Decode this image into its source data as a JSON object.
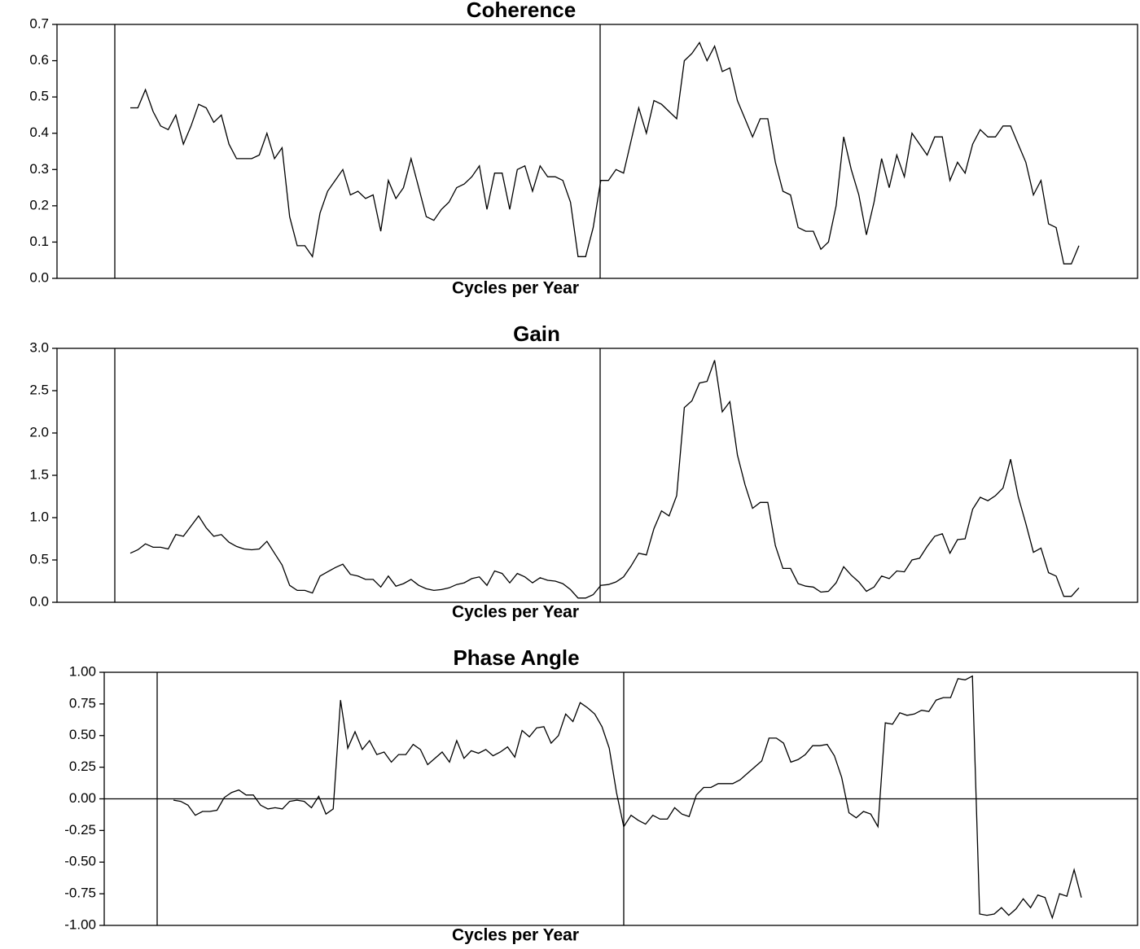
{
  "chart_data": [
    {
      "type": "line",
      "title": "Coherence",
      "x_label": "Cycles per Year",
      "color": "#000000",
      "ylim": [
        0,
        0.7
      ],
      "yticks": [
        {
          "value": 0,
          "label": "0.0"
        },
        0.1,
        0.2,
        0.3,
        0.4,
        0.5,
        0.6,
        0.7
      ],
      "values": [
        0.47,
        0.47,
        0.52,
        0.46,
        0.42,
        0.41,
        0.45,
        0.37,
        0.42,
        0.48,
        0.47,
        0.43,
        0.45,
        0.37,
        0.33,
        0.33,
        0.33,
        0.34,
        0.4,
        0.33,
        0.36,
        0.17,
        0.09,
        0.09,
        0.06,
        0.18,
        0.24,
        0.27,
        0.3,
        0.23,
        0.24,
        0.22,
        0.23,
        0.13,
        0.27,
        0.22,
        0.25,
        0.33,
        0.25,
        0.17,
        0.16,
        0.19,
        0.21,
        0.25,
        0.26,
        0.28,
        0.31,
        0.19,
        0.29,
        0.29,
        0.19,
        0.3,
        0.31,
        0.24,
        0.31,
        0.28,
        0.28,
        0.27,
        0.21,
        0.06,
        0.06,
        0.14,
        0.27,
        0.27,
        0.3,
        0.29,
        0.38,
        0.47,
        0.4,
        0.49,
        0.48,
        0.46,
        0.44,
        0.6,
        0.62,
        0.65,
        0.6,
        0.64,
        0.57,
        0.58,
        0.49,
        0.44,
        0.39,
        0.44,
        0.44,
        0.32,
        0.24,
        0.23,
        0.14,
        0.13,
        0.13,
        0.08,
        0.1,
        0.2,
        0.39,
        0.3,
        0.23,
        0.12,
        0.21,
        0.33,
        0.25,
        0.34,
        0.28,
        0.4,
        0.37,
        0.34,
        0.39,
        0.39,
        0.27,
        0.32,
        0.29,
        0.37,
        0.41,
        0.39,
        0.39,
        0.42,
        0.42,
        0.37,
        0.32,
        0.23,
        0.27,
        0.15,
        0.14,
        0.04,
        0.04,
        0.09
      ]
    },
    {
      "type": "line",
      "title": "Gain",
      "x_label": "Cycles per Year",
      "color": "#000000",
      "ylim": [
        0,
        3.0
      ],
      "yticks": [
        {
          "value": 0,
          "label": "0.0"
        },
        0.5,
        {
          "value": 1,
          "label": "1.0"
        },
        1.5,
        {
          "value": 2,
          "label": "2.0"
        },
        2.5,
        {
          "value": 3,
          "label": "3.0"
        }
      ],
      "values": [
        0.58,
        0.62,
        0.69,
        0.65,
        0.65,
        0.63,
        0.8,
        0.78,
        0.9,
        1.02,
        0.88,
        0.78,
        0.8,
        0.71,
        0.66,
        0.63,
        0.62,
        0.63,
        0.72,
        0.58,
        0.44,
        0.2,
        0.14,
        0.14,
        0.11,
        0.31,
        0.36,
        0.41,
        0.45,
        0.33,
        0.31,
        0.27,
        0.27,
        0.18,
        0.31,
        0.19,
        0.22,
        0.27,
        0.2,
        0.16,
        0.14,
        0.15,
        0.17,
        0.21,
        0.23,
        0.28,
        0.3,
        0.2,
        0.37,
        0.34,
        0.23,
        0.34,
        0.3,
        0.23,
        0.29,
        0.26,
        0.25,
        0.22,
        0.15,
        0.05,
        0.05,
        0.09,
        0.2,
        0.21,
        0.24,
        0.3,
        0.43,
        0.58,
        0.56,
        0.87,
        1.08,
        1.02,
        1.26,
        2.3,
        2.38,
        2.59,
        2.61,
        2.86,
        2.25,
        2.37,
        1.74,
        1.39,
        1.11,
        1.18,
        1.18,
        0.67,
        0.4,
        0.4,
        0.22,
        0.19,
        0.18,
        0.12,
        0.13,
        0.23,
        0.42,
        0.32,
        0.24,
        0.13,
        0.18,
        0.31,
        0.28,
        0.37,
        0.36,
        0.5,
        0.52,
        0.66,
        0.78,
        0.81,
        0.58,
        0.74,
        0.75,
        1.1,
        1.24,
        1.2,
        1.26,
        1.35,
        1.69,
        1.25,
        0.93,
        0.59,
        0.64,
        0.35,
        0.31,
        0.07,
        0.07,
        0.17
      ]
    },
    {
      "type": "line",
      "title": "Phase Angle",
      "x_label": "Cycles per Year",
      "color": "#000000",
      "ylim": [
        -1,
        1
      ],
      "yticks": [
        {
          "value": 1,
          "label": "1.00"
        },
        0.75,
        {
          "value": 0.5,
          "label": "0.50"
        },
        0.25,
        {
          "value": 0,
          "label": "0.00"
        },
        -0.25,
        {
          "value": -0.5,
          "label": "-0.50"
        },
        -0.75,
        {
          "value": -1,
          "label": "-1.00"
        }
      ],
      "values": [
        -0.01,
        -0.02,
        -0.05,
        -0.13,
        -0.1,
        -0.1,
        -0.09,
        0.01,
        0.05,
        0.07,
        0.03,
        0.03,
        -0.05,
        -0.08,
        -0.07,
        -0.08,
        -0.02,
        -0.01,
        -0.02,
        -0.07,
        0.02,
        -0.12,
        -0.08,
        0.78,
        0.4,
        0.53,
        0.39,
        0.46,
        0.35,
        0.37,
        0.29,
        0.35,
        0.35,
        0.43,
        0.39,
        0.27,
        0.32,
        0.37,
        0.29,
        0.46,
        0.32,
        0.38,
        0.36,
        0.39,
        0.34,
        0.37,
        0.41,
        0.33,
        0.54,
        0.49,
        0.56,
        0.57,
        0.44,
        0.5,
        0.67,
        0.61,
        0.76,
        0.72,
        0.67,
        0.57,
        0.4,
        0.05,
        -0.22,
        -0.13,
        -0.17,
        -0.2,
        -0.13,
        -0.16,
        -0.16,
        -0.07,
        -0.12,
        -0.14,
        0.03,
        0.09,
        0.09,
        0.12,
        0.12,
        0.12,
        0.15,
        0.2,
        0.25,
        0.3,
        0.48,
        0.48,
        0.44,
        0.29,
        0.31,
        0.35,
        0.42,
        0.42,
        0.43,
        0.34,
        0.17,
        -0.11,
        -0.15,
        -0.1,
        -0.12,
        -0.22,
        0.6,
        0.59,
        0.68,
        0.66,
        0.67,
        0.7,
        0.69,
        0.78,
        0.8,
        0.8,
        0.95,
        0.94,
        0.97,
        -0.91,
        -0.92,
        -0.91,
        -0.86,
        -0.92,
        -0.87,
        -0.79,
        -0.86,
        -0.76,
        -0.78,
        -0.94,
        -0.75,
        -0.77,
        -0.56,
        -0.78
      ]
    }
  ]
}
